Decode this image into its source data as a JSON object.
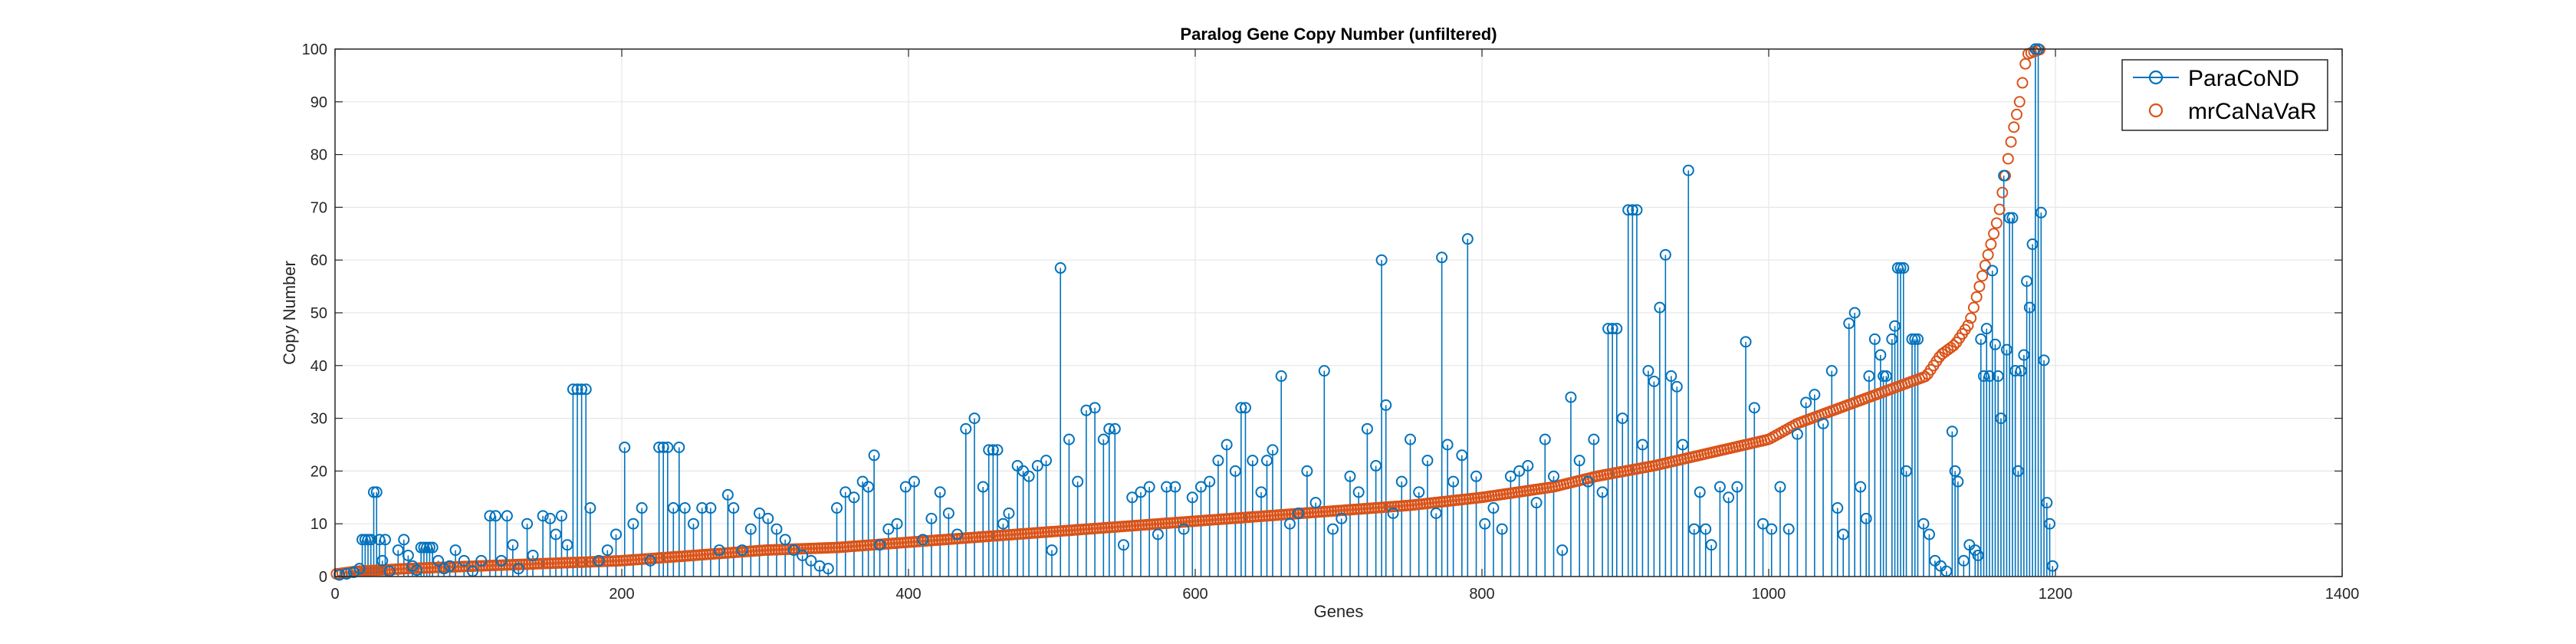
{
  "chart_data": {
    "type": "scatter",
    "title": "Paralog Gene Copy Number (unfiltered)",
    "xlabel": "Genes",
    "ylabel": "Copy Number",
    "xlim": [
      0,
      1400
    ],
    "ylim": [
      0,
      100
    ],
    "x_ticks": [
      "0",
      "200",
      "400",
      "600",
      "800",
      "1000",
      "1200",
      "1400"
    ],
    "y_ticks": [
      "0",
      "10",
      "20",
      "30",
      "40",
      "50",
      "60",
      "70",
      "80",
      "90",
      "100"
    ],
    "grid": true,
    "legend_position": "top-right",
    "series": [
      {
        "name": "ParaCoND",
        "style": "stem",
        "color": "#0072BD",
        "points": [
          [
            3,
            0.3
          ],
          [
            8,
            0.5
          ],
          [
            13,
            0.8
          ],
          [
            17,
            1.5
          ],
          [
            19,
            7
          ],
          [
            21,
            7
          ],
          [
            23,
            7
          ],
          [
            25,
            7
          ],
          [
            27,
            16
          ],
          [
            29,
            16
          ],
          [
            31,
            7
          ],
          [
            33,
            3
          ],
          [
            35,
            7
          ],
          [
            38,
            1
          ],
          [
            44,
            5
          ],
          [
            48,
            7
          ],
          [
            51,
            4
          ],
          [
            54,
            2
          ],
          [
            57,
            1.2
          ],
          [
            60,
            5.5
          ],
          [
            62,
            5.5
          ],
          [
            64,
            5.5
          ],
          [
            66,
            5.5
          ],
          [
            68,
            5.5
          ],
          [
            72,
            3
          ],
          [
            76,
            1.5
          ],
          [
            80,
            2
          ],
          [
            84,
            5
          ],
          [
            90,
            3
          ],
          [
            96,
            1
          ],
          [
            102,
            3
          ],
          [
            108,
            11.5
          ],
          [
            112,
            11.5
          ],
          [
            116,
            3
          ],
          [
            120,
            11.5
          ],
          [
            124,
            6
          ],
          [
            128,
            1.5
          ],
          [
            134,
            10
          ],
          [
            138,
            4
          ],
          [
            145,
            11.5
          ],
          [
            150,
            11
          ],
          [
            154,
            8
          ],
          [
            158,
            11.5
          ],
          [
            162,
            6
          ],
          [
            166,
            35.5
          ],
          [
            169,
            35.5
          ],
          [
            172,
            35.5
          ],
          [
            175,
            35.5
          ],
          [
            178,
            13
          ],
          [
            184,
            3
          ],
          [
            190,
            5
          ],
          [
            196,
            8
          ],
          [
            202,
            24.5
          ],
          [
            208,
            10
          ],
          [
            214,
            13
          ],
          [
            220,
            3
          ],
          [
            226,
            24.5
          ],
          [
            229,
            24.5
          ],
          [
            232,
            24.5
          ],
          [
            236,
            13
          ],
          [
            240,
            24.5
          ],
          [
            244,
            13
          ],
          [
            250,
            10
          ],
          [
            256,
            13
          ],
          [
            262,
            13
          ],
          [
            268,
            5
          ],
          [
            274,
            15.5
          ],
          [
            278,
            13
          ],
          [
            284,
            5
          ],
          [
            290,
            9
          ],
          [
            296,
            12
          ],
          [
            302,
            11
          ],
          [
            308,
            9
          ],
          [
            314,
            7
          ],
          [
            320,
            5
          ],
          [
            326,
            4
          ],
          [
            332,
            3
          ],
          [
            338,
            2
          ],
          [
            344,
            1.5
          ],
          [
            350,
            13
          ],
          [
            356,
            16
          ],
          [
            362,
            15
          ],
          [
            368,
            18
          ],
          [
            372,
            17
          ],
          [
            376,
            23
          ],
          [
            380,
            6
          ],
          [
            386,
            9
          ],
          [
            392,
            10
          ],
          [
            398,
            17
          ],
          [
            404,
            18
          ],
          [
            410,
            7
          ],
          [
            416,
            11
          ],
          [
            422,
            16
          ],
          [
            428,
            12
          ],
          [
            434,
            8
          ],
          [
            440,
            28
          ],
          [
            446,
            30
          ],
          [
            452,
            17
          ],
          [
            456,
            24
          ],
          [
            459,
            24
          ],
          [
            462,
            24
          ],
          [
            466,
            10
          ],
          [
            470,
            12
          ],
          [
            476,
            21
          ],
          [
            480,
            20
          ],
          [
            484,
            19
          ],
          [
            490,
            21
          ],
          [
            496,
            22
          ],
          [
            500,
            5
          ],
          [
            506,
            58.5
          ],
          [
            512,
            26
          ],
          [
            518,
            18
          ],
          [
            524,
            31.5
          ],
          [
            530,
            32
          ],
          [
            536,
            26
          ],
          [
            540,
            28
          ],
          [
            544,
            28
          ],
          [
            550,
            6
          ],
          [
            556,
            15
          ],
          [
            562,
            16
          ],
          [
            568,
            17
          ],
          [
            574,
            8
          ],
          [
            580,
            17
          ],
          [
            586,
            17
          ],
          [
            592,
            9
          ],
          [
            598,
            15
          ],
          [
            604,
            17
          ],
          [
            610,
            18
          ],
          [
            616,
            22
          ],
          [
            622,
            25
          ],
          [
            628,
            20
          ],
          [
            632,
            32
          ],
          [
            635,
            32
          ],
          [
            640,
            22
          ],
          [
            646,
            16
          ],
          [
            650,
            22
          ],
          [
            654,
            24
          ],
          [
            660,
            38
          ],
          [
            666,
            10
          ],
          [
            672,
            12
          ],
          [
            678,
            20
          ],
          [
            684,
            14
          ],
          [
            690,
            39
          ],
          [
            696,
            9
          ],
          [
            702,
            11
          ],
          [
            708,
            19
          ],
          [
            714,
            16
          ],
          [
            720,
            28
          ],
          [
            726,
            21
          ],
          [
            730,
            60
          ],
          [
            733,
            32.5
          ],
          [
            738,
            12
          ],
          [
            744,
            18
          ],
          [
            750,
            26
          ],
          [
            756,
            16
          ],
          [
            762,
            22
          ],
          [
            768,
            12
          ],
          [
            772,
            60.5
          ],
          [
            776,
            25
          ],
          [
            780,
            18
          ],
          [
            786,
            23
          ],
          [
            790,
            64
          ],
          [
            796,
            19
          ],
          [
            802,
            10
          ],
          [
            808,
            13
          ],
          [
            814,
            9
          ],
          [
            820,
            19
          ],
          [
            826,
            20
          ],
          [
            832,
            21
          ],
          [
            838,
            14
          ],
          [
            844,
            26
          ],
          [
            850,
            19
          ],
          [
            856,
            5
          ],
          [
            862,
            34
          ],
          [
            868,
            22
          ],
          [
            874,
            18
          ],
          [
            878,
            26
          ],
          [
            884,
            16
          ],
          [
            888,
            47
          ],
          [
            891,
            47
          ],
          [
            894,
            47
          ],
          [
            898,
            30
          ],
          [
            902,
            69.5
          ],
          [
            905,
            69.5
          ],
          [
            908,
            69.5
          ],
          [
            912,
            25
          ],
          [
            916,
            39
          ],
          [
            920,
            37
          ],
          [
            924,
            51
          ],
          [
            928,
            61
          ],
          [
            932,
            38
          ],
          [
            936,
            36
          ],
          [
            940,
            25
          ],
          [
            944,
            77
          ],
          [
            948,
            9
          ],
          [
            952,
            16
          ],
          [
            956,
            9
          ],
          [
            960,
            6
          ],
          [
            966,
            17
          ],
          [
            972,
            15
          ],
          [
            978,
            17
          ],
          [
            984,
            44.5
          ],
          [
            990,
            32
          ],
          [
            996,
            10
          ],
          [
            1002,
            9
          ],
          [
            1008,
            17
          ],
          [
            1014,
            9
          ],
          [
            1020,
            27
          ],
          [
            1026,
            33
          ],
          [
            1032,
            34.5
          ],
          [
            1038,
            29
          ],
          [
            1044,
            39
          ],
          [
            1048,
            13
          ],
          [
            1052,
            8
          ],
          [
            1056,
            48
          ],
          [
            1060,
            50
          ],
          [
            1064,
            17
          ],
          [
            1068,
            11
          ],
          [
            1070,
            38
          ],
          [
            1074,
            45
          ],
          [
            1078,
            42
          ],
          [
            1080,
            38
          ],
          [
            1082,
            38
          ],
          [
            1086,
            45
          ],
          [
            1088,
            47.5
          ],
          [
            1090,
            58.5
          ],
          [
            1092,
            58.5
          ],
          [
            1094,
            58.5
          ],
          [
            1096,
            20
          ],
          [
            1100,
            45
          ],
          [
            1102,
            45
          ],
          [
            1104,
            45
          ],
          [
            1108,
            10
          ],
          [
            1112,
            8
          ],
          [
            1116,
            3
          ],
          [
            1120,
            2
          ],
          [
            1124,
            1
          ],
          [
            1128,
            27.5
          ],
          [
            1130,
            20
          ],
          [
            1132,
            18
          ],
          [
            1136,
            3
          ],
          [
            1140,
            6
          ],
          [
            1144,
            5
          ],
          [
            1146,
            4
          ],
          [
            1148,
            45
          ],
          [
            1150,
            38
          ],
          [
            1152,
            47
          ],
          [
            1154,
            38
          ],
          [
            1156,
            58
          ],
          [
            1158,
            44
          ],
          [
            1160,
            38
          ],
          [
            1162,
            30
          ],
          [
            1164,
            76
          ],
          [
            1166,
            43
          ],
          [
            1168,
            68
          ],
          [
            1170,
            68
          ],
          [
            1172,
            39
          ],
          [
            1174,
            20
          ],
          [
            1176,
            39
          ],
          [
            1178,
            42
          ],
          [
            1180,
            56
          ],
          [
            1182,
            51
          ],
          [
            1184,
            63
          ],
          [
            1186,
            100
          ],
          [
            1188,
            100
          ],
          [
            1190,
            69
          ],
          [
            1192,
            41
          ],
          [
            1194,
            14
          ],
          [
            1196,
            10
          ],
          [
            1198,
            2
          ]
        ]
      },
      {
        "name": "mrCaNaVaR",
        "style": "markers",
        "color": "#D95319",
        "x_start": 1,
        "x_end": 1190,
        "step": 2,
        "y_curve": [
          [
            1,
            0.5
          ],
          [
            15,
            1
          ],
          [
            50,
            1.5
          ],
          [
            100,
            2
          ],
          [
            150,
            2.5
          ],
          [
            200,
            3
          ],
          [
            250,
            4
          ],
          [
            300,
            5
          ],
          [
            350,
            5.5
          ],
          [
            400,
            6.5
          ],
          [
            450,
            7.5
          ],
          [
            500,
            8.5
          ],
          [
            550,
            9.5
          ],
          [
            600,
            10.5
          ],
          [
            650,
            11.5
          ],
          [
            700,
            12.5
          ],
          [
            750,
            13.5
          ],
          [
            800,
            15
          ],
          [
            850,
            17
          ],
          [
            880,
            19
          ],
          [
            920,
            21
          ],
          [
            960,
            23.5
          ],
          [
            1000,
            26
          ],
          [
            1020,
            29
          ],
          [
            1040,
            31
          ],
          [
            1060,
            33
          ],
          [
            1080,
            35
          ],
          [
            1100,
            37
          ],
          [
            1110,
            38
          ],
          [
            1120,
            42
          ],
          [
            1130,
            44
          ],
          [
            1140,
            48
          ],
          [
            1150,
            58
          ],
          [
            1160,
            68
          ],
          [
            1165,
            76
          ],
          [
            1170,
            84
          ],
          [
            1175,
            90
          ],
          [
            1180,
            99
          ],
          [
            1190,
            100
          ]
        ]
      }
    ]
  }
}
